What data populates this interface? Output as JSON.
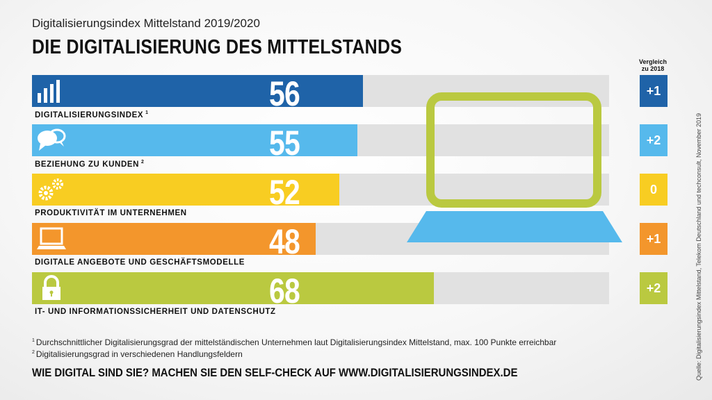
{
  "header": {
    "subtitle": "Digitalisierungsindex Mittelstand 2019/2020",
    "title": "DIE DIGITALISIERUNG DES MITTELSTANDS"
  },
  "compare_header": {
    "line1": "Vergleich",
    "line2": "zu 2018"
  },
  "chart_data": {
    "type": "bar",
    "orientation": "horizontal",
    "title": "DIE DIGITALISIERUNG DES MITTELSTANDS",
    "xlim": [
      0,
      100
    ],
    "categories": [
      "DIGITALISIERUNGSINDEX",
      "BEZIEHUNG ZU KUNDEN",
      "PRODUKTIVITÄT IM UNTERNEHMEN",
      "DIGITALE ANGEBOTE UND GESCHÄFTSMODELLE",
      "IT- UND INFORMATIONSSICHERHEIT UND DATENSCHUTZ"
    ],
    "values": [
      56,
      55,
      52,
      48,
      68
    ],
    "comparison_to_2018": [
      "+1",
      "+2",
      "0",
      "+1",
      "+2"
    ],
    "footnote_marks": [
      "1",
      "2",
      "",
      "",
      ""
    ],
    "icons": [
      "bar-chart-icon",
      "speech-bubbles-icon",
      "gears-icon",
      "laptop-icon",
      "padlock-icon"
    ],
    "colors": [
      "#1f63a8",
      "#56b9ec",
      "#f8cd22",
      "#f3962c",
      "#bac940"
    ]
  },
  "footnotes": [
    {
      "mark": "1",
      "text": "Durchschnittlicher Digitalisierungsgrad der mittelständischen Unternehmen laut Digitalisierungsindex Mittelstand, max. 100 Punkte erreichbar"
    },
    {
      "mark": "2",
      "text": "Digitalisierungsgrad in verschiedenen Handlungsfeldern"
    }
  ],
  "cta": "WIE DIGITAL SIND SIE? MACHEN SIE DEN SELF-CHECK AUF WWW.DIGITALISIERUNGSINDEX.DE",
  "source": "Quelle: Digitalisierungsindex Mittelstand, Telekom Deutschland und techconsult, November 2019",
  "illustration": {
    "screen_color": "#bac940",
    "base_color": "#56b9ec"
  }
}
